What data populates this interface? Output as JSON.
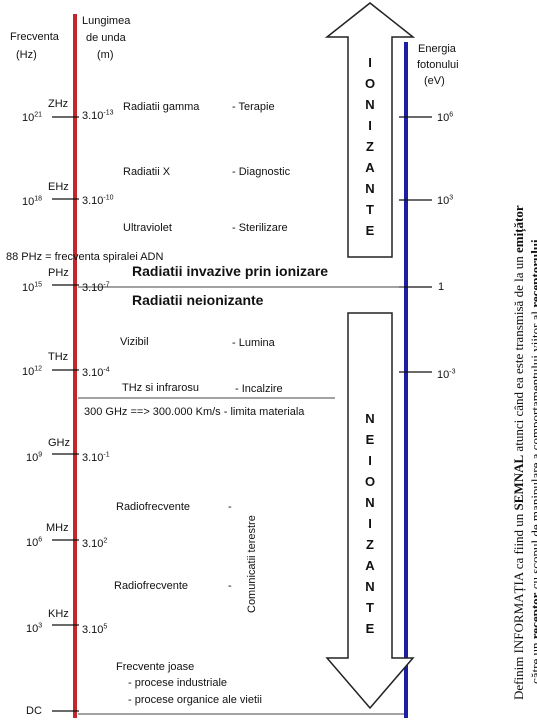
{
  "headers": {
    "freq_line1": "Frecventa",
    "freq_line2": "(Hz)",
    "wave_line1": "Lungimea",
    "wave_line2": "de unda",
    "wave_line3": "(m)",
    "energy_line1": "Energia",
    "energy_line2": "fotonului",
    "energy_line3": "(eV)"
  },
  "freq_ticks": [
    {
      "unit": "ZHz",
      "base": "10",
      "exp": "21"
    },
    {
      "unit": "EHz",
      "base": "10",
      "exp": "18"
    },
    {
      "unit": "PHz",
      "base": "10",
      "exp": "15"
    },
    {
      "unit": "THz",
      "base": "10",
      "exp": "12"
    },
    {
      "unit": "GHz",
      "base": "10",
      "exp": "9"
    },
    {
      "unit": "MHz",
      "base": "10",
      "exp": "6"
    },
    {
      "unit": "KHz",
      "base": "10",
      "exp": "3"
    },
    {
      "unit": "",
      "base": "DC",
      "exp": ""
    }
  ],
  "wave_ticks": [
    {
      "base": "3.10",
      "exp": "-13"
    },
    {
      "base": "3.10",
      "exp": "-10"
    },
    {
      "base": "3.10",
      "exp": "-7"
    },
    {
      "base": "3.10",
      "exp": "-4"
    },
    {
      "base": "3.10",
      "exp": "-1"
    },
    {
      "base": "3.10",
      "exp": "2"
    },
    {
      "base": "3.10",
      "exp": "5"
    }
  ],
  "energy_ticks": [
    {
      "base": "10",
      "exp": "6"
    },
    {
      "base": "10",
      "exp": "3"
    },
    {
      "base": "1",
      "exp": ""
    },
    {
      "base": "10",
      "exp": "-3"
    }
  ],
  "bands": {
    "gamma": "Radiatii gamma",
    "gamma_use": "- Terapie",
    "xray": "Radiatii X",
    "xray_use": "- Diagnostic",
    "uv": "Ultraviolet",
    "uv_use": "- Sterilizare",
    "adn": "88 PHz = frecventa spiralei ADN",
    "invazive": "Radiatii invazive prin ionizare",
    "neionizante": "Radiatii neionizante",
    "vizibil": "Vizibil",
    "vizibil_use": "- Lumina",
    "thz": "THz si infrarosu",
    "thz_use": "- Incalzire",
    "limit": "300 GHz ==> 300.000 Km/s - limita materiala",
    "radio1": "Radiofrecvente",
    "radio_dash": "-",
    "radio2": "Radiofrecvente",
    "radio_use": "Comunicatii terestre",
    "low_freq": "Frecvente joase",
    "low_use1": "- procese industriale",
    "low_use2": "- procese organice ale vietii"
  },
  "arrows": {
    "ionizante": [
      "I",
      "O",
      "N",
      "I",
      "Z",
      "A",
      "N",
      "T",
      "E"
    ],
    "neionizante": [
      "N",
      "E",
      "I",
      "O",
      "N",
      "I",
      "Z",
      "A",
      "N",
      "T",
      "E"
    ]
  },
  "caption": {
    "p1": "Definim INFORMAȚIA ca fiind un ",
    "b1": "SEMNAL",
    "p2": " atunci când ea este transmisă de la un ",
    "b2": "emițător",
    "p3": "către un ",
    "b3": "receptor",
    "p4": " cu scopul de manipulare a comportamentului viitor al ",
    "b4": "receptorului",
    "p5": "."
  },
  "colors": {
    "red_axis": "#c1272d",
    "blue_axis": "#1b1fa3"
  }
}
